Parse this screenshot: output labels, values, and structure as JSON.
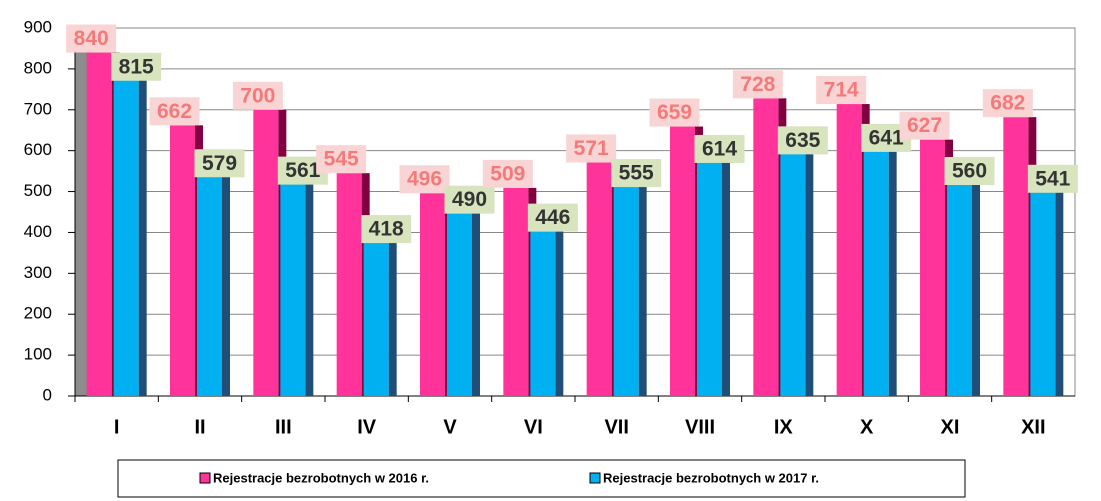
{
  "chart_data": {
    "type": "bar",
    "categories": [
      "I",
      "II",
      "III",
      "IV",
      "V",
      "VI",
      "VII",
      "VIII",
      "IX",
      "X",
      "XI",
      "XII"
    ],
    "series": [
      {
        "name": "Rejestracje bezrobotnych w 2016 r.",
        "color": "#ff3399",
        "values": [
          840,
          662,
          700,
          545,
          496,
          509,
          571,
          659,
          728,
          714,
          627,
          682
        ]
      },
      {
        "name": "Rejestracje bezrobotnych w 2017 r.",
        "color": "#00b0f0",
        "values": [
          815,
          579,
          561,
          418,
          490,
          446,
          555,
          614,
          635,
          641,
          560,
          541
        ]
      }
    ],
    "ylim": [
      0,
      900
    ],
    "yticks": [
      0,
      100,
      200,
      300,
      400,
      500,
      600,
      700,
      800,
      900
    ],
    "grid": true
  }
}
